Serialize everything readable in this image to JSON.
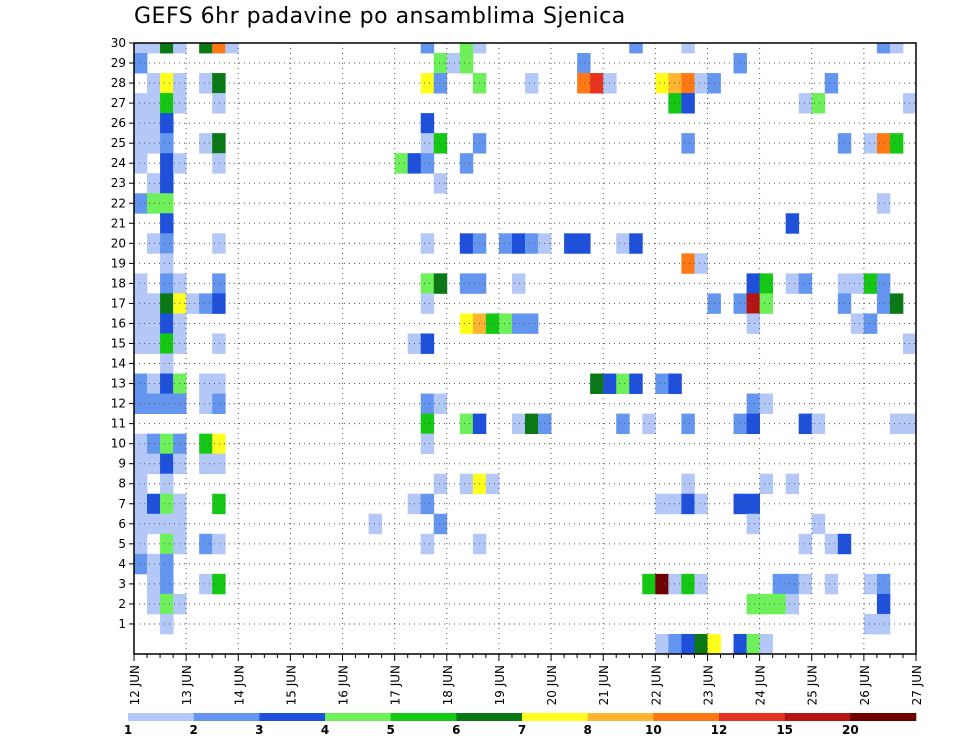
{
  "title": "GEFS 6hr padavine po ansamblima Sjenica",
  "chart_data": {
    "type": "heatmap",
    "title": "GEFS 6hr padavine po ansamblima Sjenica",
    "xlabel": "",
    "ylabel": "",
    "x_tick_labels": [
      "12 JUN",
      "13 JUN",
      "14 JUN",
      "15 JUN",
      "16 JUN",
      "17 JUN",
      "18 JUN",
      "19 JUN",
      "20 JUN",
      "21 JUN",
      "22 JUN",
      "23 JUN",
      "24 JUN",
      "25 JUN",
      "26 JUN",
      "27 JUN"
    ],
    "y_tick_labels": [
      "1",
      "2",
      "3",
      "4",
      "5",
      "6",
      "7",
      "8",
      "9",
      "10",
      "11",
      "12",
      "13",
      "14",
      "15",
      "16",
      "17",
      "18",
      "19",
      "20",
      "21",
      "22",
      "23",
      "24",
      "25",
      "26",
      "27",
      "28",
      "29",
      "30"
    ],
    "x_unit": "6h step",
    "members_range": [
      0,
      30
    ],
    "steps_per_day": 4,
    "grid": true,
    "legend_placement": "bottom",
    "legend_thresholds": [
      "1",
      "2",
      "3",
      "4",
      "5",
      "6",
      "7",
      "8",
      "10",
      "12",
      "15",
      "20"
    ],
    "legend_colors": [
      "#b4c8f8",
      "#6496f0",
      "#1e50dc",
      "#6ef05a",
      "#14c814",
      "#0a7814",
      "#ffff1e",
      "#ffb432",
      "#ff7814",
      "#e6321e",
      "#b41414",
      "#6e0000"
    ],
    "cells": [
      [
        0,
        30,
        1
      ],
      [
        1,
        30,
        1
      ],
      [
        2,
        30,
        6
      ],
      [
        3,
        30,
        1
      ],
      [
        5,
        30,
        6
      ],
      [
        6,
        30,
        9
      ],
      [
        7,
        30,
        1
      ],
      [
        22,
        30,
        2
      ],
      [
        25,
        30,
        4
      ],
      [
        26,
        30,
        1
      ],
      [
        38,
        30,
        2
      ],
      [
        42,
        30,
        1
      ],
      [
        57,
        30,
        2
      ],
      [
        58,
        30,
        1
      ],
      [
        70,
        30,
        1
      ],
      [
        71,
        30,
        2
      ],
      [
        0,
        29,
        2
      ],
      [
        23,
        29,
        4
      ],
      [
        24,
        29,
        1
      ],
      [
        25,
        29,
        4
      ],
      [
        34,
        29,
        2
      ],
      [
        46,
        29,
        2
      ],
      [
        1,
        28,
        1
      ],
      [
        2,
        28,
        7
      ],
      [
        3,
        28,
        1
      ],
      [
        5,
        28,
        1
      ],
      [
        6,
        28,
        6
      ],
      [
        22,
        28,
        7
      ],
      [
        23,
        28,
        2
      ],
      [
        26,
        28,
        4
      ],
      [
        30,
        28,
        1
      ],
      [
        34,
        28,
        9
      ],
      [
        35,
        28,
        10
      ],
      [
        36,
        28,
        1
      ],
      [
        40,
        28,
        7
      ],
      [
        41,
        28,
        8
      ],
      [
        42,
        28,
        9
      ],
      [
        43,
        28,
        1
      ],
      [
        44,
        28,
        2
      ],
      [
        53,
        28,
        2
      ],
      [
        0,
        27,
        1
      ],
      [
        1,
        27,
        1
      ],
      [
        2,
        27,
        5
      ],
      [
        3,
        27,
        1
      ],
      [
        6,
        27,
        1
      ],
      [
        41,
        27,
        5
      ],
      [
        42,
        27,
        3
      ],
      [
        51,
        27,
        1
      ],
      [
        52,
        27,
        4
      ],
      [
        59,
        27,
        1
      ],
      [
        0,
        26,
        1
      ],
      [
        1,
        26,
        1
      ],
      [
        2,
        26,
        3
      ],
      [
        22,
        26,
        3
      ],
      [
        0,
        25,
        1
      ],
      [
        1,
        25,
        1
      ],
      [
        2,
        25,
        2
      ],
      [
        5,
        25,
        1
      ],
      [
        6,
        25,
        6
      ],
      [
        22,
        25,
        1
      ],
      [
        23,
        25,
        5
      ],
      [
        26,
        25,
        2
      ],
      [
        42,
        25,
        2
      ],
      [
        54,
        25,
        2
      ],
      [
        56,
        25,
        1
      ],
      [
        57,
        25,
        9
      ],
      [
        58,
        25,
        5
      ],
      [
        0,
        24,
        1
      ],
      [
        2,
        24,
        3
      ],
      [
        3,
        24,
        1
      ],
      [
        6,
        24,
        1
      ],
      [
        20,
        24,
        4
      ],
      [
        21,
        24,
        3
      ],
      [
        22,
        24,
        2
      ],
      [
        25,
        24,
        2
      ],
      [
        1,
        23,
        1
      ],
      [
        2,
        23,
        3
      ],
      [
        23,
        23,
        1
      ],
      [
        0,
        22,
        2
      ],
      [
        1,
        22,
        4
      ],
      [
        2,
        22,
        4
      ],
      [
        57,
        22,
        1
      ],
      [
        2,
        21,
        3
      ],
      [
        50,
        21,
        3
      ],
      [
        1,
        20,
        1
      ],
      [
        2,
        20,
        2
      ],
      [
        6,
        20,
        1
      ],
      [
        22,
        20,
        1
      ],
      [
        25,
        20,
        3
      ],
      [
        26,
        20,
        2
      ],
      [
        28,
        20,
        2
      ],
      [
        29,
        20,
        3
      ],
      [
        30,
        20,
        2
      ],
      [
        31,
        20,
        1
      ],
      [
        33,
        20,
        3
      ],
      [
        34,
        20,
        3
      ],
      [
        37,
        20,
        1
      ],
      [
        38,
        20,
        3
      ],
      [
        2,
        19,
        1
      ],
      [
        42,
        19,
        9
      ],
      [
        43,
        19,
        1
      ],
      [
        0,
        18,
        1
      ],
      [
        2,
        18,
        2
      ],
      [
        3,
        18,
        1
      ],
      [
        6,
        18,
        2
      ],
      [
        22,
        18,
        4
      ],
      [
        23,
        18,
        6
      ],
      [
        25,
        18,
        2
      ],
      [
        26,
        18,
        2
      ],
      [
        29,
        18,
        1
      ],
      [
        47,
        18,
        3
      ],
      [
        48,
        18,
        5
      ],
      [
        50,
        18,
        1
      ],
      [
        51,
        18,
        2
      ],
      [
        54,
        18,
        1
      ],
      [
        55,
        18,
        1
      ],
      [
        56,
        18,
        5
      ],
      [
        57,
        18,
        2
      ],
      [
        0,
        17,
        1
      ],
      [
        1,
        17,
        1
      ],
      [
        2,
        17,
        6
      ],
      [
        3,
        17,
        7
      ],
      [
        4,
        17,
        1
      ],
      [
        5,
        17,
        2
      ],
      [
        6,
        17,
        3
      ],
      [
        22,
        17,
        1
      ],
      [
        44,
        17,
        2
      ],
      [
        46,
        17,
        2
      ],
      [
        47,
        17,
        11
      ],
      [
        48,
        17,
        4
      ],
      [
        54,
        17,
        2
      ],
      [
        57,
        17,
        2
      ],
      [
        58,
        17,
        6
      ],
      [
        0,
        16,
        1
      ],
      [
        1,
        16,
        1
      ],
      [
        2,
        16,
        3
      ],
      [
        3,
        16,
        1
      ],
      [
        25,
        16,
        7
      ],
      [
        26,
        16,
        8
      ],
      [
        27,
        16,
        5
      ],
      [
        28,
        16,
        4
      ],
      [
        29,
        16,
        2
      ],
      [
        30,
        16,
        2
      ],
      [
        47,
        16,
        1
      ],
      [
        55,
        16,
        1
      ],
      [
        56,
        16,
        2
      ],
      [
        0,
        15,
        1
      ],
      [
        1,
        15,
        1
      ],
      [
        2,
        15,
        5
      ],
      [
        3,
        15,
        1
      ],
      [
        6,
        15,
        1
      ],
      [
        21,
        15,
        1
      ],
      [
        22,
        15,
        3
      ],
      [
        59,
        15,
        1
      ],
      [
        2,
        14,
        1
      ],
      [
        0,
        13,
        2
      ],
      [
        1,
        13,
        1
      ],
      [
        2,
        13,
        3
      ],
      [
        3,
        13,
        4
      ],
      [
        5,
        13,
        1
      ],
      [
        6,
        13,
        1
      ],
      [
        35,
        13,
        6
      ],
      [
        36,
        13,
        3
      ],
      [
        37,
        13,
        4
      ],
      [
        38,
        13,
        3
      ],
      [
        40,
        13,
        2
      ],
      [
        41,
        13,
        3
      ],
      [
        0,
        12,
        2
      ],
      [
        1,
        12,
        2
      ],
      [
        2,
        12,
        2
      ],
      [
        3,
        12,
        2
      ],
      [
        5,
        12,
        1
      ],
      [
        6,
        12,
        2
      ],
      [
        22,
        12,
        2
      ],
      [
        23,
        12,
        1
      ],
      [
        47,
        12,
        2
      ],
      [
        48,
        12,
        1
      ],
      [
        22,
        11,
        5
      ],
      [
        25,
        11,
        4
      ],
      [
        26,
        11,
        3
      ],
      [
        29,
        11,
        1
      ],
      [
        30,
        11,
        6
      ],
      [
        31,
        11,
        2
      ],
      [
        37,
        11,
        2
      ],
      [
        39,
        11,
        1
      ],
      [
        42,
        11,
        2
      ],
      [
        46,
        11,
        2
      ],
      [
        47,
        11,
        3
      ],
      [
        51,
        11,
        3
      ],
      [
        52,
        11,
        1
      ],
      [
        58,
        11,
        1
      ],
      [
        59,
        11,
        1
      ],
      [
        0,
        10,
        1
      ],
      [
        1,
        10,
        2
      ],
      [
        2,
        10,
        4
      ],
      [
        3,
        10,
        2
      ],
      [
        5,
        10,
        5
      ],
      [
        6,
        10,
        7
      ],
      [
        22,
        10,
        1
      ],
      [
        0,
        9,
        1
      ],
      [
        1,
        9,
        1
      ],
      [
        2,
        9,
        3
      ],
      [
        3,
        9,
        1
      ],
      [
        5,
        9,
        1
      ],
      [
        6,
        9,
        1
      ],
      [
        0,
        8,
        1
      ],
      [
        2,
        8,
        1
      ],
      [
        23,
        8,
        1
      ],
      [
        25,
        8,
        1
      ],
      [
        26,
        8,
        7
      ],
      [
        27,
        8,
        1
      ],
      [
        42,
        8,
        1
      ],
      [
        48,
        8,
        1
      ],
      [
        50,
        8,
        1
      ],
      [
        0,
        7,
        1
      ],
      [
        1,
        7,
        3
      ],
      [
        2,
        7,
        4
      ],
      [
        3,
        7,
        1
      ],
      [
        6,
        7,
        5
      ],
      [
        21,
        7,
        1
      ],
      [
        22,
        7,
        2
      ],
      [
        40,
        7,
        1
      ],
      [
        41,
        7,
        1
      ],
      [
        42,
        7,
        3
      ],
      [
        43,
        7,
        1
      ],
      [
        46,
        7,
        3
      ],
      [
        47,
        7,
        3
      ],
      [
        0,
        6,
        1
      ],
      [
        1,
        6,
        1
      ],
      [
        2,
        6,
        1
      ],
      [
        3,
        6,
        1
      ],
      [
        18,
        6,
        1
      ],
      [
        23,
        6,
        2
      ],
      [
        47,
        6,
        1
      ],
      [
        52,
        6,
        1
      ],
      [
        0,
        5,
        1
      ],
      [
        2,
        5,
        4
      ],
      [
        3,
        5,
        1
      ],
      [
        5,
        5,
        2
      ],
      [
        6,
        5,
        1
      ],
      [
        22,
        5,
        1
      ],
      [
        26,
        5,
        1
      ],
      [
        51,
        5,
        1
      ],
      [
        53,
        5,
        1
      ],
      [
        54,
        5,
        3
      ],
      [
        0,
        4,
        2
      ],
      [
        1,
        4,
        1
      ],
      [
        2,
        4,
        2
      ],
      [
        1,
        3,
        1
      ],
      [
        2,
        3,
        2
      ],
      [
        5,
        3,
        1
      ],
      [
        6,
        3,
        5
      ],
      [
        39,
        3,
        5
      ],
      [
        40,
        3,
        12
      ],
      [
        41,
        3,
        1
      ],
      [
        42,
        3,
        5
      ],
      [
        43,
        3,
        1
      ],
      [
        49,
        3,
        2
      ],
      [
        50,
        3,
        2
      ],
      [
        51,
        3,
        1
      ],
      [
        53,
        3,
        1
      ],
      [
        56,
        3,
        1
      ],
      [
        57,
        3,
        2
      ],
      [
        1,
        2,
        1
      ],
      [
        2,
        2,
        4
      ],
      [
        3,
        2,
        1
      ],
      [
        47,
        2,
        4
      ],
      [
        48,
        2,
        4
      ],
      [
        49,
        2,
        4
      ],
      [
        50,
        2,
        1
      ],
      [
        57,
        2,
        3
      ],
      [
        2,
        1,
        1
      ],
      [
        56,
        1,
        1
      ],
      [
        57,
        1,
        1
      ],
      [
        40,
        0,
        1
      ],
      [
        41,
        0,
        2
      ],
      [
        42,
        0,
        3
      ],
      [
        43,
        0,
        6
      ],
      [
        44,
        0,
        7
      ],
      [
        46,
        0,
        3
      ],
      [
        47,
        0,
        4
      ],
      [
        48,
        0,
        1
      ]
    ]
  }
}
